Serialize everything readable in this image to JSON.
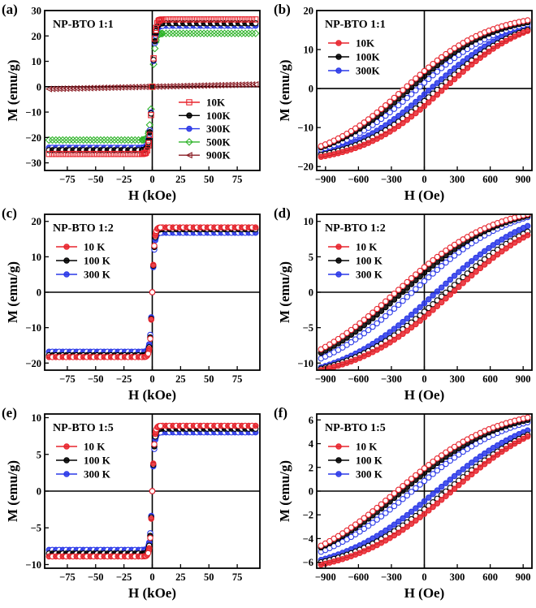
{
  "chart_data": [
    {
      "panel": "(a)",
      "type": "line",
      "title": "NP-BTO 1:1",
      "xlabel": "H (kOe)",
      "ylabel": "M (emu/g)",
      "xlim": [
        -95,
        95
      ],
      "ylim": [
        -33,
        30
      ],
      "xticks": [
        -75,
        -50,
        -25,
        0,
        25,
        50,
        75
      ],
      "yticks": [
        -30,
        -20,
        -10,
        0,
        10,
        20,
        30
      ],
      "legend_position": "bottom-right",
      "loop": "sat",
      "sat_width": 2.5,
      "series": [
        {
          "name": "10K",
          "marker": "square",
          "color": "#e8242d",
          "ms": 26.5,
          "hc": 0
        },
        {
          "name": "100K",
          "marker": "circle",
          "color": "#000000",
          "ms": 25.0,
          "hc": 0
        },
        {
          "name": "300K",
          "marker": "circle",
          "color": "#2a38e8",
          "ms": 24.0,
          "hc": 0
        },
        {
          "name": "500K",
          "marker": "diamond",
          "color": "#2fb42a",
          "ms": 21.0,
          "hc": 0
        },
        {
          "name": "900K",
          "marker": "triangle",
          "color": "#8a1c24",
          "ms": 0.9,
          "hc": 0,
          "linear": true
        }
      ]
    },
    {
      "panel": "(b)",
      "type": "line",
      "title": "NP-BTO 1:1",
      "xlabel": "H (Oe)",
      "ylabel": "M (emu/g)",
      "xlim": [
        -980,
        980
      ],
      "ylim": [
        -21,
        20
      ],
      "xticks": [
        -900,
        -600,
        -300,
        0,
        300,
        600,
        900
      ],
      "yticks": [
        -20,
        -10,
        0,
        10,
        20
      ],
      "legend_position": "top-left",
      "loop": "hyst",
      "series": [
        {
          "name": "10K",
          "marker": "circle",
          "color": "#e8242d",
          "ms": 17.5,
          "hc": 180,
          "k": 0.0013
        },
        {
          "name": "100K",
          "marker": "circle",
          "color": "#000000",
          "ms": 17.0,
          "hc": 130,
          "k": 0.0013
        },
        {
          "name": "300K",
          "marker": "circle",
          "color": "#2a38e8",
          "ms": 16.5,
          "hc": 60,
          "k": 0.0013
        }
      ]
    },
    {
      "panel": "(c)",
      "type": "line",
      "title": "NP-BTO 1:2",
      "xlabel": "H (kOe)",
      "ylabel": "M (emu/g)",
      "xlim": [
        -95,
        95
      ],
      "ylim": [
        -22,
        22
      ],
      "xticks": [
        -75,
        -50,
        -25,
        0,
        25,
        50,
        75
      ],
      "yticks": [
        -20,
        -10,
        0,
        10,
        20
      ],
      "legend_position": "top-left",
      "loop": "sat",
      "sat_width": 2.0,
      "series": [
        {
          "name": "10 K",
          "marker": "circle",
          "color": "#e8242d",
          "ms": 18.3,
          "hc": 0
        },
        {
          "name": "100 K",
          "marker": "circle",
          "color": "#000000",
          "ms": 17.8,
          "hc": 0
        },
        {
          "name": "300 K",
          "marker": "circle",
          "color": "#2a38e8",
          "ms": 16.8,
          "hc": 0
        }
      ]
    },
    {
      "panel": "(d)",
      "type": "line",
      "title": "NP-BTO 1:2",
      "xlabel": "H (Oe)",
      "ylabel": "M (emu/g)",
      "xlim": [
        -980,
        980
      ],
      "ylim": [
        -11,
        11
      ],
      "xticks": [
        -900,
        -600,
        -300,
        0,
        300,
        600,
        900
      ],
      "yticks": [
        -10,
        -5,
        0,
        5,
        10
      ],
      "legend_position": "top-left",
      "loop": "hyst",
      "series": [
        {
          "name": "10 K",
          "marker": "circle",
          "color": "#e8242d",
          "ms": 11.0,
          "hc": 260,
          "k": 0.0011
        },
        {
          "name": "100 K",
          "marker": "circle",
          "color": "#000000",
          "ms": 10.8,
          "hc": 200,
          "k": 0.0011
        },
        {
          "name": "300 K",
          "marker": "circle",
          "color": "#2a38e8",
          "ms": 10.6,
          "hc": 110,
          "k": 0.0011
        }
      ]
    },
    {
      "panel": "(e)",
      "type": "line",
      "title": "NP-BTO 1:5",
      "xlabel": "H (kOe)",
      "ylabel": "M (emu/g)",
      "xlim": [
        -95,
        95
      ],
      "ylim": [
        -10.5,
        10.5
      ],
      "xticks": [
        -75,
        -50,
        -25,
        0,
        25,
        50,
        75
      ],
      "yticks": [
        -10,
        -5,
        0,
        5,
        10
      ],
      "legend_position": "top-left",
      "loop": "sat",
      "sat_width": 2.0,
      "series": [
        {
          "name": "10 K",
          "marker": "circle",
          "color": "#e8242d",
          "ms": 8.9,
          "hc": 0
        },
        {
          "name": "100 K",
          "marker": "circle",
          "color": "#000000",
          "ms": 8.5,
          "hc": 0
        },
        {
          "name": "300 K",
          "marker": "circle",
          "color": "#2a38e8",
          "ms": 8.0,
          "hc": 0
        }
      ]
    },
    {
      "panel": "(f)",
      "type": "line",
      "title": "NP-BTO 1:5",
      "xlabel": "H (Oe)",
      "ylabel": "M (emu/g)",
      "xlim": [
        -980,
        980
      ],
      "ylim": [
        -6.5,
        6.5
      ],
      "xticks": [
        -900,
        -600,
        -300,
        0,
        300,
        600,
        900
      ],
      "yticks": [
        -6,
        -4,
        -2,
        0,
        2,
        4,
        6
      ],
      "legend_position": "top-left",
      "loop": "hyst",
      "series": [
        {
          "name": "10 K",
          "marker": "circle",
          "color": "#e8242d",
          "ms": 6.2,
          "hc": 250,
          "k": 0.0011
        },
        {
          "name": "100 K",
          "marker": "circle",
          "color": "#000000",
          "ms": 6.0,
          "hc": 200,
          "k": 0.0011
        },
        {
          "name": "300 K",
          "marker": "circle",
          "color": "#2a38e8",
          "ms": 5.8,
          "hc": 110,
          "k": 0.0011
        }
      ]
    }
  ]
}
